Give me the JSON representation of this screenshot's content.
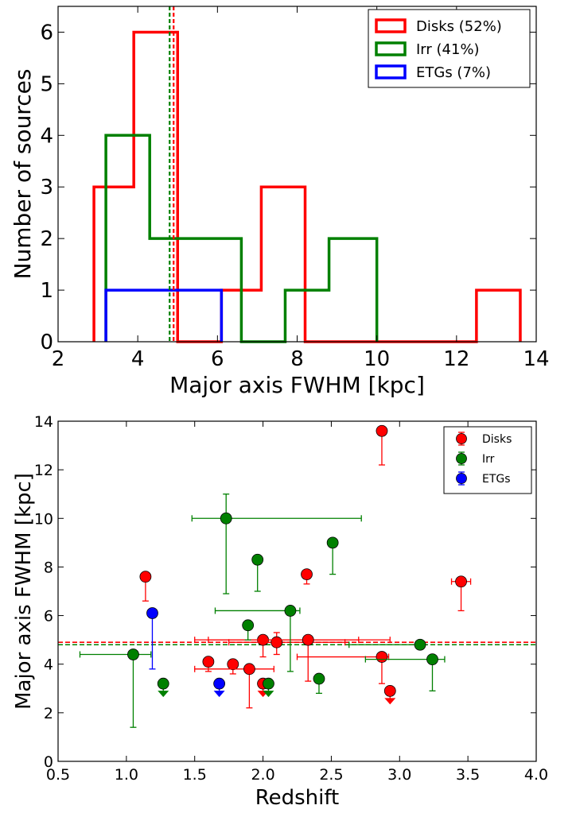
{
  "chart_data": [
    {
      "type": "histogram",
      "xlabel": "Major axis FWHM [kpc]",
      "ylabel": "Number of sources",
      "xlim": [
        2,
        14
      ],
      "ylim": [
        0,
        6.5
      ],
      "xticks": [
        "2",
        "4",
        "6",
        "8",
        "10",
        "12",
        "14"
      ],
      "yticks": [
        "0",
        "1",
        "2",
        "3",
        "4",
        "5",
        "6"
      ],
      "legend_position": "top-right",
      "series": [
        {
          "name": "Disks (52%)",
          "color": "#ff0000",
          "edges": [
            2.9,
            3.9,
            5.0,
            6.1,
            7.1,
            8.2,
            9.3,
            10.4,
            11.4,
            12.5,
            13.6
          ],
          "counts": [
            3,
            6,
            0,
            1,
            3,
            0,
            0,
            0,
            0,
            1
          ]
        },
        {
          "name": "Irr (41%)",
          "color": "#008000",
          "edges": [
            3.2,
            4.3,
            5.4,
            6.6,
            7.7,
            8.8,
            10.0
          ],
          "counts": [
            4,
            2,
            2,
            0,
            1,
            2
          ]
        },
        {
          "name": "ETGs (7%)",
          "color": "#0000ff",
          "edges": [
            3.2,
            4.6,
            6.1
          ],
          "counts": [
            1,
            1
          ]
        }
      ],
      "medians": [
        {
          "series": "Disks",
          "x": 4.9,
          "color": "#ff0000"
        },
        {
          "series": "Irr",
          "x": 4.8,
          "color": "#008000"
        }
      ]
    },
    {
      "type": "scatter",
      "xlabel": "Redshift",
      "ylabel": "Major axis FWHM [kpc]",
      "xlim": [
        0.5,
        4.0
      ],
      "ylim": [
        0,
        14
      ],
      "xticks": [
        "0.5",
        "1.0",
        "1.5",
        "2.0",
        "2.5",
        "3.0",
        "3.5",
        "4.0"
      ],
      "yticks": [
        "0",
        "2",
        "4",
        "6",
        "8",
        "10",
        "12",
        "14"
      ],
      "legend_position": "top-right",
      "series": [
        {
          "name": "Disks",
          "color": "#ff0000",
          "points": [
            {
              "x": 1.14,
              "y": 7.6,
              "ylo": 6.6,
              "yhi": 7.6
            },
            {
              "x": 1.6,
              "y": 4.1,
              "ylo": 3.7,
              "yhi": 4.1
            },
            {
              "x": 1.78,
              "y": 4.0,
              "ylo": 3.6,
              "yhi": 4.0
            },
            {
              "x": 1.9,
              "y": 3.8,
              "ylo": 2.2,
              "yhi": 3.8,
              "xlo": 1.5,
              "xhi": 2.08
            },
            {
              "x": 2.0,
              "y": 5.0,
              "ylo": 4.3,
              "yhi": 5.0,
              "xlo": 1.5,
              "xhi": 2.7
            },
            {
              "x": 2.0,
              "y": 3.2,
              "upper_limit": true
            },
            {
              "x": 2.1,
              "y": 4.9,
              "ylo": 4.4,
              "yhi": 5.3,
              "xlo": 1.75,
              "xhi": 2.6
            },
            {
              "x": 2.32,
              "y": 7.7,
              "ylo": 7.3,
              "yhi": 7.7
            },
            {
              "x": 2.33,
              "y": 5.0,
              "ylo": 3.3,
              "yhi": 5.0,
              "xlo": 1.6,
              "xhi": 2.93
            },
            {
              "x": 2.87,
              "y": 13.6,
              "ylo": 12.2,
              "yhi": 13.6
            },
            {
              "x": 2.87,
              "y": 4.3,
              "ylo": 3.2,
              "yhi": 4.3,
              "xlo": 2.25,
              "xhi": 2.92
            },
            {
              "x": 2.93,
              "y": 2.9,
              "upper_limit": true
            },
            {
              "x": 3.45,
              "y": 7.4,
              "ylo": 6.2,
              "yhi": 7.4,
              "xlo": 3.38,
              "xhi": 3.52
            }
          ]
        },
        {
          "name": "Irr",
          "color": "#008000",
          "points": [
            {
              "x": 1.05,
              "y": 4.4,
              "ylo": 1.4,
              "yhi": 4.4,
              "xlo": 0.66,
              "xhi": 1.18
            },
            {
              "x": 1.27,
              "y": 3.2,
              "upper_limit": true
            },
            {
              "x": 1.73,
              "y": 10.0,
              "ylo": 6.9,
              "yhi": 11.0,
              "xlo": 1.48,
              "xhi": 2.72
            },
            {
              "x": 1.89,
              "y": 5.6,
              "ylo": 5.0,
              "yhi": 5.6
            },
            {
              "x": 1.96,
              "y": 8.3,
              "ylo": 7.0,
              "yhi": 8.3
            },
            {
              "x": 2.04,
              "y": 3.2,
              "upper_limit": true
            },
            {
              "x": 2.2,
              "y": 6.2,
              "ylo": 3.7,
              "yhi": 6.2,
              "xlo": 1.65,
              "xhi": 2.27
            },
            {
              "x": 2.41,
              "y": 3.4,
              "ylo": 2.8,
              "yhi": 3.4
            },
            {
              "x": 2.51,
              "y": 9.0,
              "ylo": 7.7,
              "yhi": 9.0
            },
            {
              "x": 3.15,
              "y": 4.8,
              "ylo": 4.8,
              "yhi": 4.8,
              "xlo": 2.63,
              "xhi": 3.18
            },
            {
              "x": 3.24,
              "y": 4.2,
              "ylo": 2.9,
              "yhi": 4.2,
              "xlo": 2.75,
              "xhi": 3.33
            }
          ]
        },
        {
          "name": "ETGs",
          "color": "#0000ff",
          "points": [
            {
              "x": 1.19,
              "y": 6.1,
              "ylo": 3.8,
              "yhi": 6.1
            },
            {
              "x": 1.68,
              "y": 3.2,
              "upper_limit": true
            }
          ]
        }
      ],
      "reference_lines": [
        {
          "series": "Disks",
          "y": 4.9,
          "color": "#ff0000"
        },
        {
          "series": "Irr",
          "y": 4.8,
          "color": "#008000"
        }
      ]
    }
  ]
}
